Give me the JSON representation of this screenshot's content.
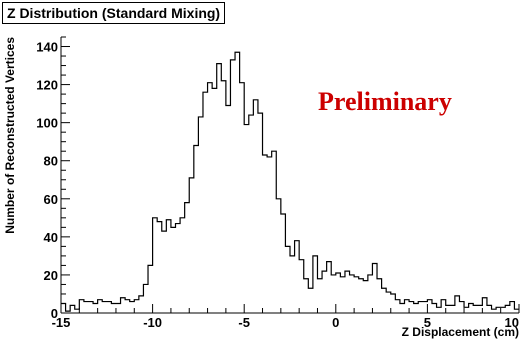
{
  "chart_data": {
    "type": "histogram",
    "title": "Z Distribution (Standard Mixing)",
    "annotation": "Preliminary",
    "xlabel": "Z Displacement (cm)",
    "ylabel": "Number of Reconstructed Vertices",
    "xlim": [
      -15,
      10
    ],
    "ylim": [
      0,
      145
    ],
    "x_ticks": [
      -15,
      -10,
      -5,
      0,
      5,
      10
    ],
    "x_tick_labels": [
      "-15",
      "-10",
      "-5",
      "0",
      "5",
      "10"
    ],
    "y_ticks": [
      0,
      20,
      40,
      60,
      80,
      100,
      120,
      140
    ],
    "y_tick_labels": [
      "0",
      "20",
      "40",
      "60",
      "80",
      "100",
      "120",
      "140"
    ],
    "grid": false,
    "bin_start": -15,
    "bin_width": 0.25,
    "counts": [
      5,
      1,
      4,
      2,
      7,
      6,
      6,
      5,
      7,
      6,
      6,
      5,
      5,
      8,
      7,
      6,
      7,
      9,
      15,
      25,
      50,
      48,
      43,
      49,
      45,
      47,
      50,
      58,
      71,
      88,
      103,
      116,
      121,
      118,
      131,
      122,
      109,
      133,
      137,
      121,
      99,
      104,
      112,
      105,
      83,
      82,
      85,
      60,
      52,
      35,
      30,
      38,
      28,
      18,
      13,
      30,
      18,
      22,
      27,
      20,
      21,
      19,
      22,
      20,
      19,
      18,
      17,
      20,
      26,
      18,
      13,
      11,
      10,
      7,
      5,
      7,
      6,
      5,
      6,
      6,
      7,
      5,
      3,
      7,
      4,
      4,
      9,
      6,
      3,
      5,
      4,
      4,
      8,
      4,
      2,
      3,
      3,
      4,
      6,
      2
    ],
    "colors": {
      "line": "#000000",
      "annotation": "#cc0000",
      "background": "#ffffff"
    }
  }
}
